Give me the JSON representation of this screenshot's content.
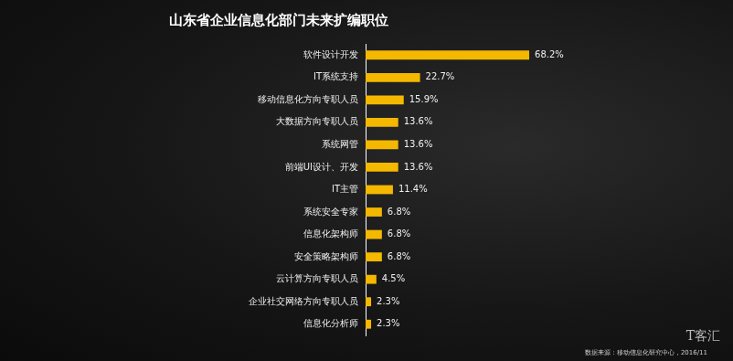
{
  "chart_data": {
    "type": "bar",
    "orientation": "horizontal",
    "title": "山东省企业信息化部门未来扩编职位",
    "categories": [
      "软件设计开发",
      "IT系统支持",
      "移动信息化方向专职人员",
      "大数据方向专职人员",
      "系统网管",
      "前端UI设计、开发",
      "IT主管",
      "系统安全专家",
      "信息化架构师",
      "安全策略架构师",
      "云计算方向专职人员",
      "企业社交网络方向专职人员",
      "信息化分析师"
    ],
    "values": [
      68.2,
      22.7,
      15.9,
      13.6,
      13.6,
      13.6,
      11.4,
      6.8,
      6.8,
      6.8,
      4.5,
      2.3,
      2.3
    ],
    "value_labels": [
      "68.2%",
      "22.7%",
      "15.9%",
      "13.6%",
      "13.6%",
      "13.6%",
      "11.4%",
      "6.8%",
      "6.8%",
      "6.8%",
      "4.5%",
      "2.3%",
      "2.3%"
    ],
    "color": "#f5b800",
    "data_labels": true,
    "tick_labels": "y",
    "grid": false,
    "annotations": [
      "T客汇",
      "数据来源：移动信息化研究中心，2016/11"
    ]
  }
}
